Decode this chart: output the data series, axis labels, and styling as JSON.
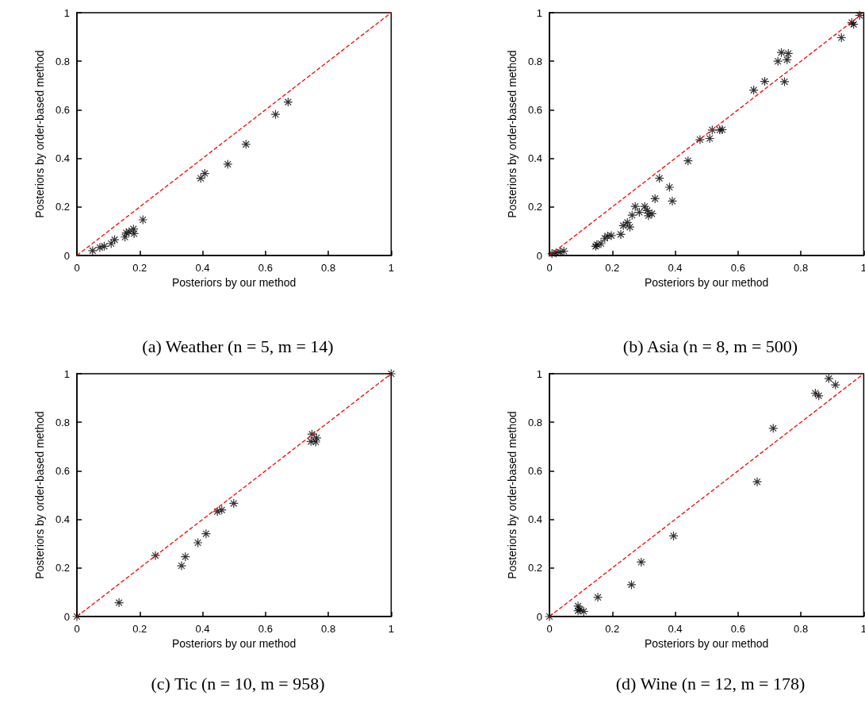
{
  "chart_data": [
    {
      "type": "scatter",
      "title": "(a) Weather (n = 5, m = 14)",
      "xlabel": "Posteriors by our method",
      "ylabel": "Posteriors by order-based method",
      "xlim": [
        0,
        1
      ],
      "ylim": [
        0,
        1
      ],
      "xticks": [
        0,
        0.2,
        0.4,
        0.6,
        0.8,
        1
      ],
      "yticks": [
        0,
        0.2,
        0.4,
        0.6,
        0.8,
        1
      ],
      "grid": false,
      "series": [
        {
          "color": "#000000",
          "marker": "cross",
          "x": [
            0.05,
            0.073,
            0.087,
            0.109,
            0.12,
            0.153,
            0.157,
            0.166,
            0.18,
            0.182,
            0.21,
            0.394,
            0.407,
            0.48,
            0.538,
            0.632,
            0.672
          ],
          "values": [
            0.02,
            0.033,
            0.038,
            0.049,
            0.065,
            0.076,
            0.093,
            0.098,
            0.109,
            0.09,
            0.147,
            0.318,
            0.338,
            0.376,
            0.458,
            0.581,
            0.632
          ]
        },
        {
          "type": "line",
          "color": "#ff0000",
          "line_style": "dashed",
          "marker": "none",
          "x": [
            0,
            1
          ],
          "values": [
            0,
            1
          ]
        }
      ]
    },
    {
      "type": "scatter",
      "title": "(b) Asia (n = 8, m = 500)",
      "xlabel": "Posteriors by our method",
      "ylabel": "Posteriors by order-based method",
      "xlim": [
        0,
        1
      ],
      "ylim": [
        0,
        1
      ],
      "xticks": [
        0,
        0.2,
        0.4,
        0.6,
        0.8,
        1
      ],
      "yticks": [
        0,
        0.2,
        0.4,
        0.6,
        0.8,
        1
      ],
      "grid": false,
      "series": [
        {
          "color": "#000000",
          "marker": "cross",
          "x": [
            0.008,
            0.021,
            0.034,
            0.046,
            0.147,
            0.151,
            0.164,
            0.176,
            0.185,
            0.197,
            0.227,
            0.235,
            0.248,
            0.256,
            0.263,
            0.273,
            0.286,
            0.303,
            0.311,
            0.315,
            0.326,
            0.336,
            0.35,
            0.382,
            0.391,
            0.441,
            0.479,
            0.51,
            0.518,
            0.542,
            0.55,
            0.65,
            0.685,
            0.727,
            0.738,
            0.748,
            0.756,
            0.76,
            0.929,
            0.962,
            0.968,
            0.987
          ],
          "values": [
            0.008,
            0.011,
            0.014,
            0.018,
            0.038,
            0.044,
            0.049,
            0.071,
            0.08,
            0.082,
            0.087,
            0.123,
            0.136,
            0.117,
            0.166,
            0.202,
            0.178,
            0.202,
            0.185,
            0.164,
            0.172,
            0.234,
            0.318,
            0.281,
            0.224,
            0.39,
            0.477,
            0.482,
            0.517,
            0.517,
            0.518,
            0.681,
            0.717,
            0.8,
            0.836,
            0.716,
            0.806,
            0.832,
            0.897,
            0.959,
            0.952,
            0.989
          ]
        },
        {
          "type": "line",
          "color": "#ff0000",
          "line_style": "dashed",
          "marker": "none",
          "x": [
            0,
            1
          ],
          "values": [
            0,
            1
          ]
        }
      ]
    },
    {
      "type": "scatter",
      "title": "(c) Tic (n = 10, m = 958)",
      "xlabel": "Posteriors by our method",
      "ylabel": "Posteriors by order-based method",
      "xlim": [
        0,
        1
      ],
      "ylim": [
        0,
        1
      ],
      "xticks": [
        0,
        0.2,
        0.4,
        0.6,
        0.8,
        1
      ],
      "yticks": [
        0,
        0.2,
        0.4,
        0.6,
        0.8,
        1
      ],
      "grid": false,
      "series": [
        {
          "color": "#000000",
          "marker": "cross",
          "x": [
            0,
            0.134,
            0.25,
            0.333,
            0.345,
            0.385,
            0.411,
            0.447,
            0.461,
            0.499,
            0.748,
            0.745,
            0.76,
            0.763,
            1
          ],
          "values": [
            0,
            0.057,
            0.251,
            0.209,
            0.246,
            0.304,
            0.341,
            0.432,
            0.439,
            0.466,
            0.751,
            0.721,
            0.719,
            0.736,
            1
          ]
        },
        {
          "type": "line",
          "color": "#ff0000",
          "line_style": "dashed",
          "marker": "none",
          "x": [
            0,
            1
          ],
          "values": [
            0,
            1
          ]
        }
      ]
    },
    {
      "type": "scatter",
      "title": "(d) Wine (n = 12, m = 178)",
      "xlabel": "Posteriors by our method",
      "ylabel": "Posteriors by order-based method",
      "xlim": [
        0,
        1
      ],
      "ylim": [
        0,
        1
      ],
      "xticks": [
        0,
        0.2,
        0.4,
        0.6,
        0.8,
        1
      ],
      "yticks": [
        0,
        0.2,
        0.4,
        0.6,
        0.8,
        1
      ],
      "grid": false,
      "series": [
        {
          "color": "#000000",
          "marker": "cross",
          "x": [
            0,
            0.091,
            0.091,
            0.097,
            0.109,
            0.154,
            0.261,
            0.292,
            0.395,
            0.661,
            0.712,
            0.846,
            0.857,
            0.889,
            0.91
          ],
          "values": [
            0,
            0.043,
            0.024,
            0.029,
            0.021,
            0.079,
            0.131,
            0.224,
            0.332,
            0.555,
            0.775,
            0.92,
            0.909,
            0.98,
            0.954
          ]
        },
        {
          "type": "line",
          "color": "#ff0000",
          "line_style": "dashed",
          "marker": "none",
          "x": [
            0,
            1
          ],
          "values": [
            0,
            1
          ]
        }
      ]
    }
  ]
}
